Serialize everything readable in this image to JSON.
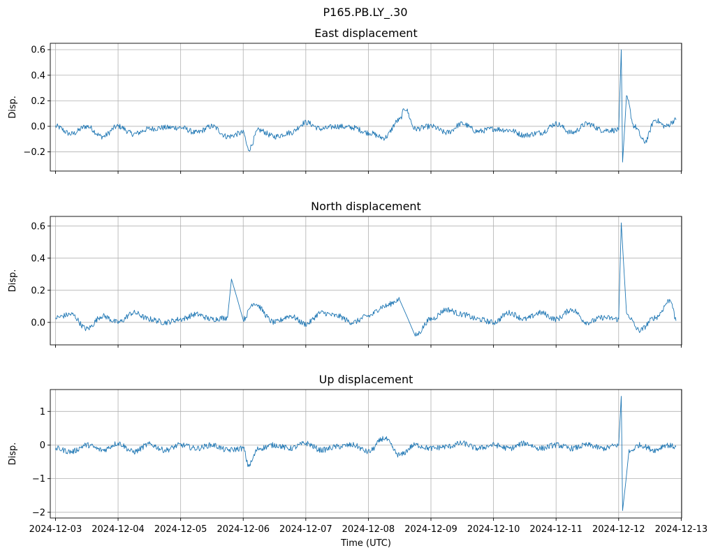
{
  "figure": {
    "suptitle": "P165.PB.LY_.30"
  },
  "chart_data": [
    {
      "type": "line",
      "title": "East displacement",
      "xlabel": "",
      "ylabel": "Disp.",
      "xlim": [
        "2024-12-02T22:00",
        "2024-12-13T00:10"
      ],
      "ylim": [
        -0.35,
        0.65
      ],
      "yticks": [
        -0.2,
        0.0,
        0.2,
        0.4,
        0.6
      ],
      "ytick_labels": [
        "−0.2",
        "0.0",
        "0.2",
        "0.4",
        "0.6"
      ],
      "grid": true,
      "color": "#1f77b4",
      "series": [
        {
          "x": [
            "2024-12-03T00:00",
            "2024-12-03T06:00",
            "2024-12-03T12:00",
            "2024-12-03T18:00",
            "2024-12-04T00:00",
            "2024-12-04T06:00",
            "2024-12-04T12:00",
            "2024-12-04T18:00",
            "2024-12-05T00:00",
            "2024-12-05T06:00",
            "2024-12-05T12:00",
            "2024-12-05T18:00",
            "2024-12-06T00:00",
            "2024-12-06T02:00",
            "2024-12-06T06:00",
            "2024-12-06T12:00",
            "2024-12-06T18:00",
            "2024-12-07T00:00",
            "2024-12-07T06:00",
            "2024-12-07T12:00",
            "2024-12-07T18:00",
            "2024-12-08T00:00",
            "2024-12-08T06:00",
            "2024-12-08T12:00",
            "2024-12-08T14:00",
            "2024-12-08T18:00",
            "2024-12-09T00:00",
            "2024-12-09T06:00",
            "2024-12-09T12:00",
            "2024-12-09T18:00",
            "2024-12-10T00:00",
            "2024-12-10T06:00",
            "2024-12-10T12:00",
            "2024-12-10T18:00",
            "2024-12-11T00:00",
            "2024-12-11T06:00",
            "2024-12-11T12:00",
            "2024-12-11T18:00",
            "2024-12-12T00:00",
            "2024-12-12T01:00",
            "2024-12-12T01:30",
            "2024-12-12T03:00",
            "2024-12-12T06:00",
            "2024-12-12T10:00",
            "2024-12-12T14:00",
            "2024-12-12T18:00",
            "2024-12-12T22:00"
          ],
          "y": [
            0.0,
            -0.06,
            0.0,
            -0.08,
            0.0,
            -0.06,
            -0.02,
            -0.01,
            -0.01,
            -0.05,
            0.0,
            -0.08,
            -0.05,
            -0.18,
            -0.03,
            -0.08,
            -0.05,
            0.03,
            -0.02,
            0.0,
            -0.01,
            -0.05,
            -0.09,
            0.05,
            0.14,
            -0.02,
            0.0,
            -0.05,
            0.02,
            -0.04,
            -0.02,
            -0.03,
            -0.07,
            -0.05,
            0.02,
            -0.05,
            0.02,
            -0.03,
            -0.03,
            0.6,
            -0.28,
            0.22,
            0.0,
            -0.12,
            0.05,
            0.0,
            0.05
          ]
        }
      ]
    },
    {
      "type": "line",
      "title": "North displacement",
      "xlabel": "",
      "ylabel": "Disp.",
      "xlim": [
        "2024-12-02T22:00",
        "2024-12-13T00:10"
      ],
      "ylim": [
        -0.14,
        0.66
      ],
      "yticks": [
        0.0,
        0.2,
        0.4,
        0.6
      ],
      "ytick_labels": [
        "0.0",
        "0.2",
        "0.4",
        "0.6"
      ],
      "grid": true,
      "color": "#1f77b4",
      "series": [
        {
          "x": [
            "2024-12-03T00:00",
            "2024-12-03T06:00",
            "2024-12-03T12:00",
            "2024-12-03T18:00",
            "2024-12-04T00:00",
            "2024-12-04T06:00",
            "2024-12-04T12:00",
            "2024-12-04T18:00",
            "2024-12-05T00:00",
            "2024-12-05T06:00",
            "2024-12-05T12:00",
            "2024-12-05T18:00",
            "2024-12-05T19:30",
            "2024-12-06T00:00",
            "2024-12-06T04:00",
            "2024-12-06T12:00",
            "2024-12-06T18:00",
            "2024-12-07T00:00",
            "2024-12-07T06:00",
            "2024-12-07T12:00",
            "2024-12-07T18:00",
            "2024-12-08T00:00",
            "2024-12-08T06:00",
            "2024-12-08T12:00",
            "2024-12-08T18:00",
            "2024-12-09T00:00",
            "2024-12-09T06:00",
            "2024-12-09T12:00",
            "2024-12-09T18:00",
            "2024-12-10T00:00",
            "2024-12-10T06:00",
            "2024-12-10T12:00",
            "2024-12-10T18:00",
            "2024-12-11T00:00",
            "2024-12-11T06:00",
            "2024-12-11T12:00",
            "2024-12-11T18:00",
            "2024-12-12T00:00",
            "2024-12-12T01:00",
            "2024-12-12T03:00",
            "2024-12-12T08:00",
            "2024-12-12T14:00",
            "2024-12-12T20:00",
            "2024-12-12T22:00"
          ],
          "y": [
            0.03,
            0.05,
            -0.04,
            0.04,
            0.0,
            0.06,
            0.02,
            0.0,
            0.02,
            0.05,
            0.02,
            0.03,
            0.27,
            0.02,
            0.12,
            0.0,
            0.04,
            -0.01,
            0.06,
            0.04,
            0.0,
            0.04,
            0.1,
            0.14,
            -0.08,
            0.02,
            0.08,
            0.05,
            0.02,
            0.0,
            0.06,
            0.02,
            0.06,
            0.02,
            0.08,
            0.0,
            0.03,
            0.02,
            0.62,
            0.05,
            -0.05,
            0.03,
            0.14,
            0.01
          ]
        }
      ]
    },
    {
      "type": "line",
      "title": "Up displacement",
      "xlabel": "Time (UTC)",
      "ylabel": "Disp.",
      "xlim": [
        "2024-12-02T22:00",
        "2024-12-13T00:10"
      ],
      "ylim": [
        -2.17,
        1.65
      ],
      "yticks": [
        -2,
        -1,
        0,
        1
      ],
      "ytick_labels": [
        "−2",
        "−1",
        "0",
        "1"
      ],
      "xticks": [
        "2024-12-03",
        "2024-12-04",
        "2024-12-05",
        "2024-12-06",
        "2024-12-07",
        "2024-12-08",
        "2024-12-09",
        "2024-12-10",
        "2024-12-11",
        "2024-12-12",
        "2024-12-13"
      ],
      "grid": true,
      "color": "#1f77b4",
      "series": [
        {
          "x": [
            "2024-12-03T00:00",
            "2024-12-03T06:00",
            "2024-12-03T12:00",
            "2024-12-03T18:00",
            "2024-12-04T00:00",
            "2024-12-04T06:00",
            "2024-12-04T12:00",
            "2024-12-04T18:00",
            "2024-12-05T00:00",
            "2024-12-05T06:00",
            "2024-12-05T12:00",
            "2024-12-05T18:00",
            "2024-12-06T00:00",
            "2024-12-06T02:00",
            "2024-12-06T06:00",
            "2024-12-06T12:00",
            "2024-12-06T18:00",
            "2024-12-07T00:00",
            "2024-12-07T06:00",
            "2024-12-07T12:00",
            "2024-12-07T18:00",
            "2024-12-08T00:00",
            "2024-12-08T06:00",
            "2024-12-08T12:00",
            "2024-12-08T18:00",
            "2024-12-09T00:00",
            "2024-12-09T06:00",
            "2024-12-09T12:00",
            "2024-12-09T18:00",
            "2024-12-10T00:00",
            "2024-12-10T06:00",
            "2024-12-10T12:00",
            "2024-12-10T18:00",
            "2024-12-11T00:00",
            "2024-12-11T06:00",
            "2024-12-11T12:00",
            "2024-12-11T18:00",
            "2024-12-12T00:00",
            "2024-12-12T01:00",
            "2024-12-12T01:30",
            "2024-12-12T04:00",
            "2024-12-12T08:00",
            "2024-12-12T14:00",
            "2024-12-12T18:00",
            "2024-12-12T22:00"
          ],
          "y": [
            -0.1,
            -0.2,
            0.0,
            -0.15,
            0.05,
            -0.2,
            0.02,
            -0.15,
            0.0,
            -0.1,
            0.0,
            -0.15,
            -0.1,
            -0.6,
            -0.1,
            0.0,
            -0.1,
            0.05,
            -0.15,
            -0.05,
            0.0,
            -0.2,
            0.2,
            -0.3,
            0.0,
            -0.1,
            -0.05,
            0.05,
            -0.1,
            0.0,
            -0.1,
            0.05,
            -0.1,
            0.0,
            -0.1,
            0.0,
            -0.1,
            0.0,
            1.45,
            -1.95,
            -0.2,
            0.0,
            -0.15,
            0.0,
            -0.05
          ]
        }
      ]
    }
  ]
}
